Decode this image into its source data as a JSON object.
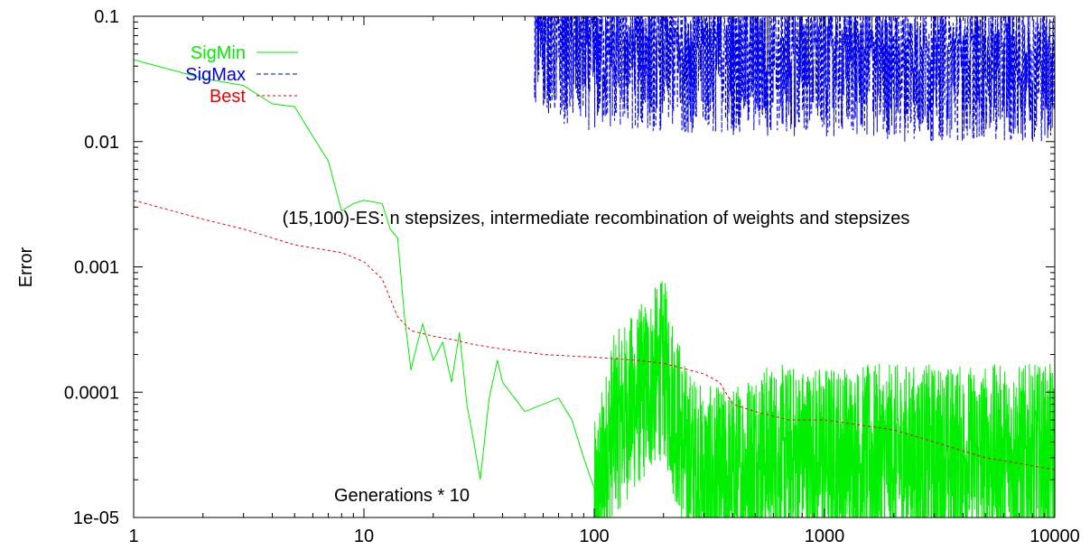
{
  "chart_data": {
    "type": "line",
    "title": "",
    "annotations": [
      {
        "id": "annotation-es",
        "text": "(15,100)-ES: n stepsizes, intermediate recombination of weights and stepsizes",
        "x": 250,
        "y": 0.0022
      },
      {
        "id": "annotation-generations",
        "text": "Generations * 10",
        "x": 120,
        "y": 1.4e-05
      }
    ],
    "xlabel": "",
    "ylabel": "Error",
    "xscale": "log",
    "yscale": "log",
    "xlim": [
      1,
      10000
    ],
    "ylim": [
      1e-05,
      0.1
    ],
    "x_ticks": [
      "1",
      "10",
      "100",
      "1000",
      "10000"
    ],
    "y_ticks": [
      "1e-05",
      "0.0001",
      "0.001",
      "0.01",
      "0.1"
    ],
    "grid": false,
    "legend_position": "top-left",
    "series": [
      {
        "name": "SigMin",
        "color": "#00ee00",
        "dash": "solid",
        "points": [
          [
            1,
            0.045
          ],
          [
            2,
            0.032
          ],
          [
            3,
            0.028
          ],
          [
            4,
            0.02
          ],
          [
            5,
            0.019
          ],
          [
            6,
            0.011
          ],
          [
            7,
            0.007
          ],
          [
            8,
            0.0028
          ],
          [
            9,
            0.0032
          ],
          [
            10,
            0.0034
          ],
          [
            12,
            0.0032
          ],
          [
            13,
            0.002
          ],
          [
            14,
            0.0017
          ],
          [
            15,
            0.0004
          ],
          [
            16,
            0.00015
          ],
          [
            17,
            0.00024
          ],
          [
            18,
            0.00035
          ],
          [
            20,
            0.00018
          ],
          [
            22,
            0.00025
          ],
          [
            24,
            0.00012
          ],
          [
            26,
            0.0003
          ],
          [
            28,
            8e-05
          ],
          [
            30,
            4e-05
          ],
          [
            32,
            2e-05
          ],
          [
            35,
            9e-05
          ],
          [
            38,
            0.00018
          ],
          [
            40,
            0.00012
          ],
          [
            45,
            9e-05
          ],
          [
            50,
            7e-05
          ],
          [
            60,
            8e-05
          ],
          [
            70,
            9e-05
          ],
          [
            80,
            6e-05
          ],
          [
            90,
            3e-05
          ],
          [
            100,
            1e-05
          ],
          [
            120,
            5e-05
          ],
          [
            150,
            8e-05
          ],
          [
            200,
            0.00015
          ],
          [
            250,
            3e-05
          ],
          [
            300,
            2e-05
          ],
          [
            400,
            2e-05
          ],
          [
            500,
            3e-05
          ],
          [
            1000,
            3e-05
          ],
          [
            2000,
            3e-05
          ],
          [
            5000,
            3e-05
          ],
          [
            10000,
            3e-05
          ]
        ],
        "noise": {
          "from": 100,
          "to": 10000,
          "median": 2.5e-05,
          "decades_low": 0.7,
          "decades_high": 0.75
        }
      },
      {
        "name": "SigMax",
        "color": "#0000ee",
        "dash": "dashed",
        "points": [
          [
            55,
            0.1
          ],
          [
            70,
            0.07
          ],
          [
            100,
            0.06
          ],
          [
            200,
            0.06
          ],
          [
            500,
            0.055
          ],
          [
            1000,
            0.055
          ],
          [
            2000,
            0.05
          ],
          [
            5000,
            0.05
          ],
          [
            10000,
            0.05
          ]
        ],
        "noise": {
          "from": 55,
          "to": 10000,
          "median": 0.06,
          "decades_low": 0.7,
          "decades_high": 0.4
        }
      },
      {
        "name": "Best",
        "color": "#ee0000",
        "dash": "dotted",
        "points": [
          [
            1,
            0.0034
          ],
          [
            2,
            0.0024
          ],
          [
            3,
            0.002
          ],
          [
            5,
            0.0015
          ],
          [
            8,
            0.0013
          ],
          [
            10,
            0.0011
          ],
          [
            12,
            0.0008
          ],
          [
            14,
            0.0004
          ],
          [
            16,
            0.00031
          ],
          [
            20,
            0.00028
          ],
          [
            25,
            0.00026
          ],
          [
            30,
            0.00024
          ],
          [
            40,
            0.00022
          ],
          [
            60,
            0.0002
          ],
          [
            100,
            0.00019
          ],
          [
            150,
            0.00018
          ],
          [
            200,
            0.00017
          ],
          [
            300,
            0.00014
          ],
          [
            350,
            0.00012
          ],
          [
            400,
            8e-05
          ],
          [
            500,
            7e-05
          ],
          [
            700,
            6e-05
          ],
          [
            1000,
            6e-05
          ],
          [
            2000,
            5e-05
          ],
          [
            3000,
            4e-05
          ],
          [
            5000,
            3e-05
          ],
          [
            7000,
            2.7e-05
          ],
          [
            10000,
            2.4e-05
          ]
        ]
      }
    ]
  }
}
